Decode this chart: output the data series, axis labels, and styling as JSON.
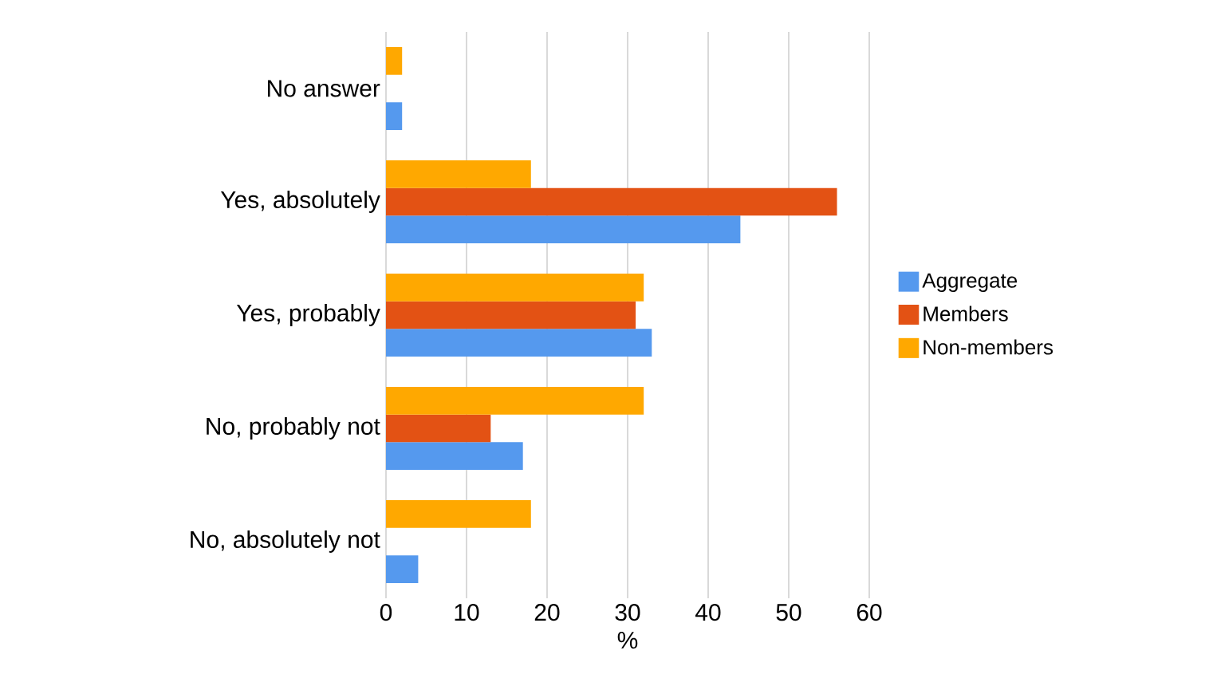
{
  "chart_data": {
    "type": "bar",
    "orientation": "horizontal",
    "xlabel": "%",
    "categories": [
      "No answer",
      "Yes, absolutely",
      "Yes, probably",
      "No, probably not",
      "No, absolutely not"
    ],
    "series": [
      {
        "name": "Aggregate",
        "color": "#5599ee",
        "values": [
          2,
          44,
          33,
          17,
          4
        ]
      },
      {
        "name": "Members",
        "color": "#e35214",
        "values": [
          0,
          56,
          31,
          13,
          0
        ]
      },
      {
        "name": "Non-members",
        "color": "#ffa800",
        "values": [
          2,
          18,
          32,
          32,
          18
        ]
      }
    ],
    "xlim": [
      0,
      60
    ],
    "xticks": [
      0,
      10,
      20,
      30,
      40,
      50,
      60
    ],
    "grid": "x",
    "legend": "right"
  }
}
